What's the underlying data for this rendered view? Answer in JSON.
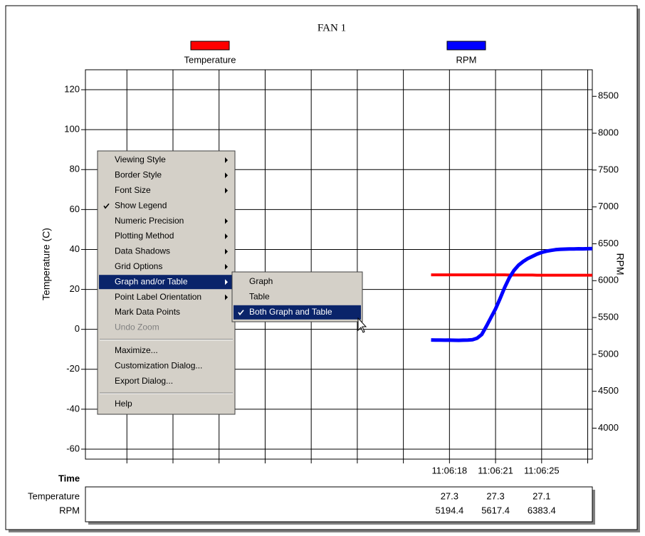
{
  "chart_data": {
    "type": "line",
    "title": "FAN 1",
    "ylabel": "Temperature (C)",
    "y2label": "RPM",
    "xlabel": "Time",
    "x": [
      66,
      67,
      68,
      69,
      70,
      71,
      72,
      73,
      74,
      75,
      76,
      77,
      78,
      79,
      80,
      81,
      82,
      83,
      84,
      85,
      86,
      87,
      88,
      89,
      90,
      91,
      92,
      93,
      94,
      95,
      96,
      97,
      98,
      99,
      100,
      101
    ],
    "xlim": [
      -9,
      101
    ],
    "xticks": [
      {
        "value": 0,
        "label": null
      },
      {
        "value": 10,
        "label": null
      },
      {
        "value": 20,
        "label": null
      },
      {
        "value": 30,
        "label": null
      },
      {
        "value": 40,
        "label": null
      },
      {
        "value": 50,
        "label": null
      },
      {
        "value": 60,
        "label": null
      },
      {
        "value": 70,
        "label": "11:06:18"
      },
      {
        "value": 80,
        "label": "11:06:21"
      },
      {
        "value": 90,
        "label": "11:06:25"
      },
      {
        "value": 100,
        "label": null
      }
    ],
    "ylim": [
      -65,
      130
    ],
    "yticks": [
      -60,
      -40,
      -20,
      0,
      20,
      40,
      60,
      80,
      100,
      120
    ],
    "y2lim": [
      3580,
      8860
    ],
    "y2ticks": [
      4000,
      4500,
      5000,
      5500,
      6000,
      6500,
      7000,
      7500,
      8000,
      8500
    ],
    "grid": true,
    "legend": "top",
    "series": [
      {
        "name": "Temperature",
        "color": "#ff0000",
        "values": [
          27.3,
          27.3,
          27.3,
          27.3,
          27.3,
          27.3,
          27.3,
          27.3,
          27.3,
          27.3,
          27.3,
          27.3,
          27.3,
          27.3,
          27.3,
          27.3,
          27.3,
          27.2,
          27.2,
          27.2,
          27.2,
          27.2,
          27.2,
          27.1,
          27.1,
          27.1,
          27.1,
          27.1,
          27.1,
          27.1,
          27.1,
          27.1,
          27.1,
          27.1,
          27.1,
          27.1
        ]
      },
      {
        "name": "RPM",
        "color": "#0000ff",
        "axis": "y2",
        "values": [
          5196,
          5195,
          5194,
          5193,
          5194.4,
          5192,
          5191,
          5193,
          5195,
          5200,
          5220,
          5270,
          5380,
          5500,
          5617.4,
          5760,
          5910,
          6040,
          6140,
          6210,
          6260,
          6300,
          6330,
          6360,
          6383.4,
          6400,
          6410,
          6420,
          6425,
          6428,
          6430,
          6430,
          6432,
          6431,
          6433,
          6435
        ]
      }
    ]
  },
  "table": {
    "rows": [
      {
        "label": "Temperature",
        "values": [
          27.3,
          27.3,
          27.1
        ]
      },
      {
        "label": "RPM",
        "values": [
          5194.4,
          5617.4,
          6383.4
        ]
      }
    ]
  },
  "context_menu": {
    "items": [
      {
        "label": "Viewing Style",
        "submenu": true
      },
      {
        "label": "Border Style",
        "submenu": true
      },
      {
        "label": "Font Size",
        "submenu": true
      },
      {
        "label": "Show Legend",
        "checked": true
      },
      {
        "label": "Numeric Precision",
        "submenu": true
      },
      {
        "label": "Plotting Method",
        "submenu": true
      },
      {
        "label": "Data Shadows",
        "submenu": true
      },
      {
        "label": "Grid Options",
        "submenu": true
      },
      {
        "label": "Graph and/or Table",
        "submenu": true,
        "highlighted": true
      },
      {
        "label": "Point Label Orientation",
        "submenu": true
      },
      {
        "label": "Mark Data Points"
      },
      {
        "label": "Undo Zoom",
        "disabled": true
      },
      {
        "separator": true
      },
      {
        "label": "Maximize..."
      },
      {
        "label": "Customization Dialog..."
      },
      {
        "label": "Export Dialog..."
      },
      {
        "separator": true
      },
      {
        "label": "Help"
      }
    ],
    "submenu": {
      "items": [
        {
          "label": "Graph"
        },
        {
          "label": "Table"
        },
        {
          "label": "Both Graph and Table",
          "checked": true,
          "highlighted": true
        }
      ]
    }
  }
}
